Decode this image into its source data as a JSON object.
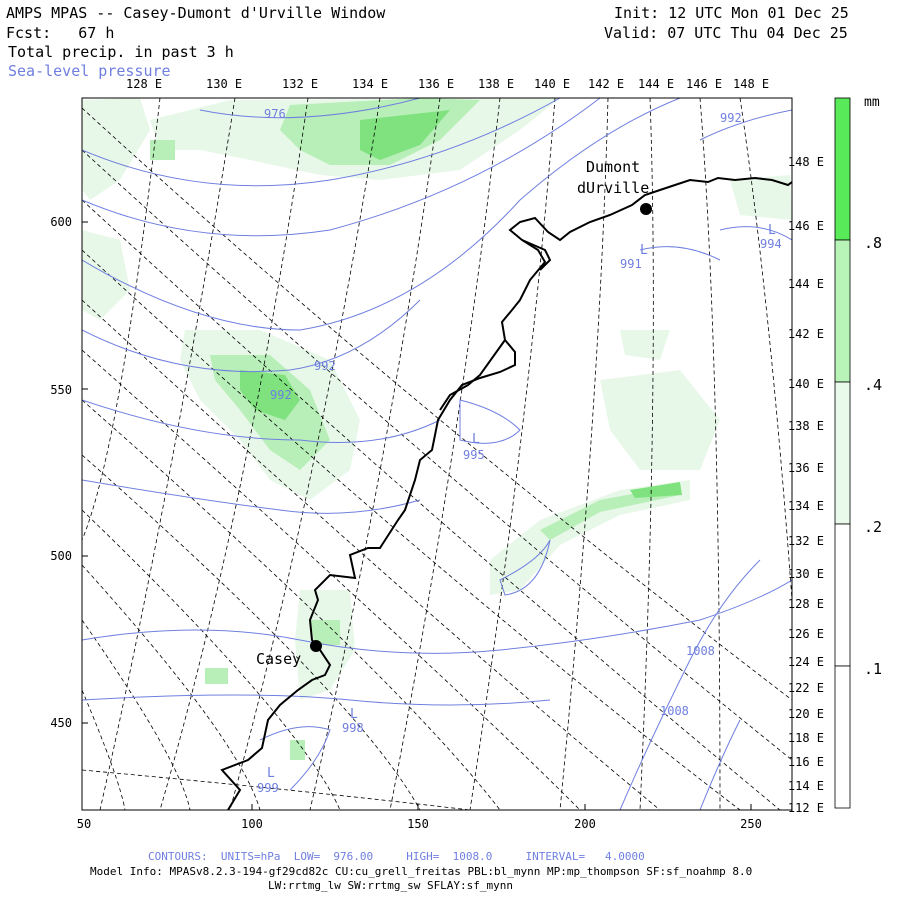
{
  "header": {
    "title": "AMPS MPAS -- Casey-Dumont d'Urville Window",
    "forecast": "Fcst:   67 h",
    "field": "Total precip. in past 3 h",
    "overlay": "Sea-level pressure",
    "init": "Init: 12 UTC Mon 01 Dec 25",
    "valid": "Valid: 07 UTC Thu 04 Dec 25"
  },
  "axes": {
    "top_lon_labels": [
      "128 E",
      "130 E",
      "132 E",
      "134 E",
      "136 E",
      "138 E",
      "140 E",
      "142 E",
      "144 E",
      "146 E",
      "148 E"
    ],
    "left_labels": [
      "600",
      "550",
      "500",
      "450"
    ],
    "bottom_labels": [
      "50",
      "100",
      "150",
      "200",
      "250"
    ],
    "right_lat_labels": [
      "148 E",
      "146 E",
      "144 E",
      "142 E",
      "140 E",
      "138 E",
      "136 E",
      "134 E",
      "132 E",
      "130 E",
      "128 E",
      "126 E",
      "124 E",
      "122 E",
      "120 E",
      "118 E",
      "116 E",
      "114 E",
      "112 E"
    ]
  },
  "stations": [
    {
      "name_line1": "Dumont",
      "name_line2": "dUrville"
    },
    {
      "name_line1": "Casey",
      "name_line2": ""
    }
  ],
  "pressure_labels": [
    "976",
    "992",
    "992",
    "992",
    "991",
    "995",
    "998",
    "999",
    "1008",
    "1008",
    "994"
  ],
  "low_markers": [
    "L",
    "L",
    "L",
    "L",
    "L"
  ],
  "colorbar": {
    "unit": "mm",
    "levels": [
      ".1",
      ".2",
      ".4",
      ".8"
    ],
    "colors": [
      "#ffffff",
      "#eafaea",
      "#b8f4b8",
      "#58ea58"
    ]
  },
  "colors": {
    "precip_light": "#e8f8e8",
    "precip_mid": "#b8eeb8",
    "precip_heavy": "#7fe27f",
    "isobar": "#6f7fe0",
    "grid": "#000000"
  },
  "footer": {
    "contours": "CONTOURS:  UNITS=hPa  LOW=  976.00     HIGH=  1008.0     INTERVAL=   4.0000",
    "model_info": "Model Info: MPASv8.2.3-194-gf29cd82c CU:cu_grell_freitas PBL:bl_mynn MP:mp_thompson SF:sf_noahmp 8.0",
    "model_info2": "LW:rrtmg_lw SW:rrtmg_sw SFLAY:sf_mynn"
  }
}
